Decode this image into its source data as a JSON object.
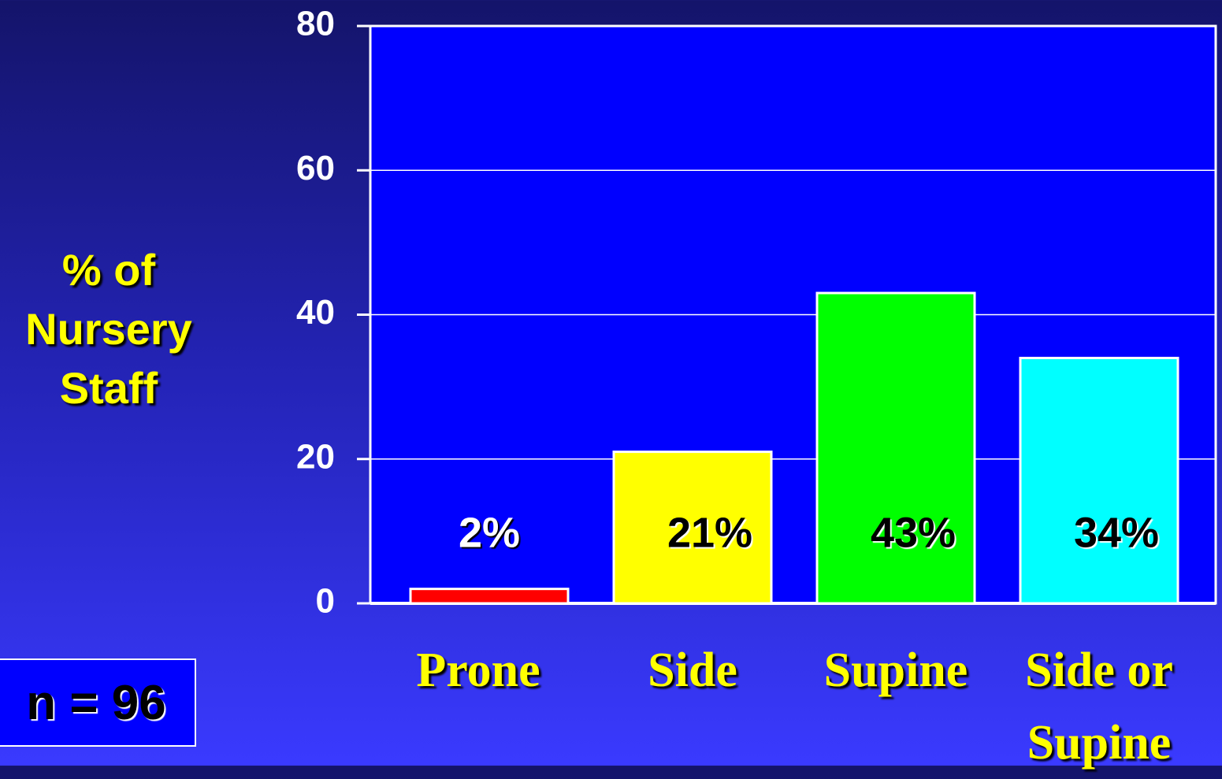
{
  "chart_data": {
    "type": "bar",
    "y_label": "% of Nursery Staff",
    "annotation": "n = 96",
    "categories": [
      "Prone",
      "Side",
      "Supine",
      "Side or Supine"
    ],
    "values": [
      2,
      21,
      43,
      34
    ],
    "value_labels": [
      "2%",
      "21%",
      "43%",
      "34%"
    ],
    "colors": [
      "#ff0000",
      "#ffff00",
      "#00ff00",
      "#00ffff"
    ],
    "value_label_colors": [
      "#ffffff",
      "#000000",
      "#000000",
      "#000000"
    ],
    "ylim": [
      0,
      80
    ],
    "yticks": [
      0,
      20,
      40,
      60,
      80
    ],
    "grid": true,
    "plot_background": "#0000ff"
  }
}
